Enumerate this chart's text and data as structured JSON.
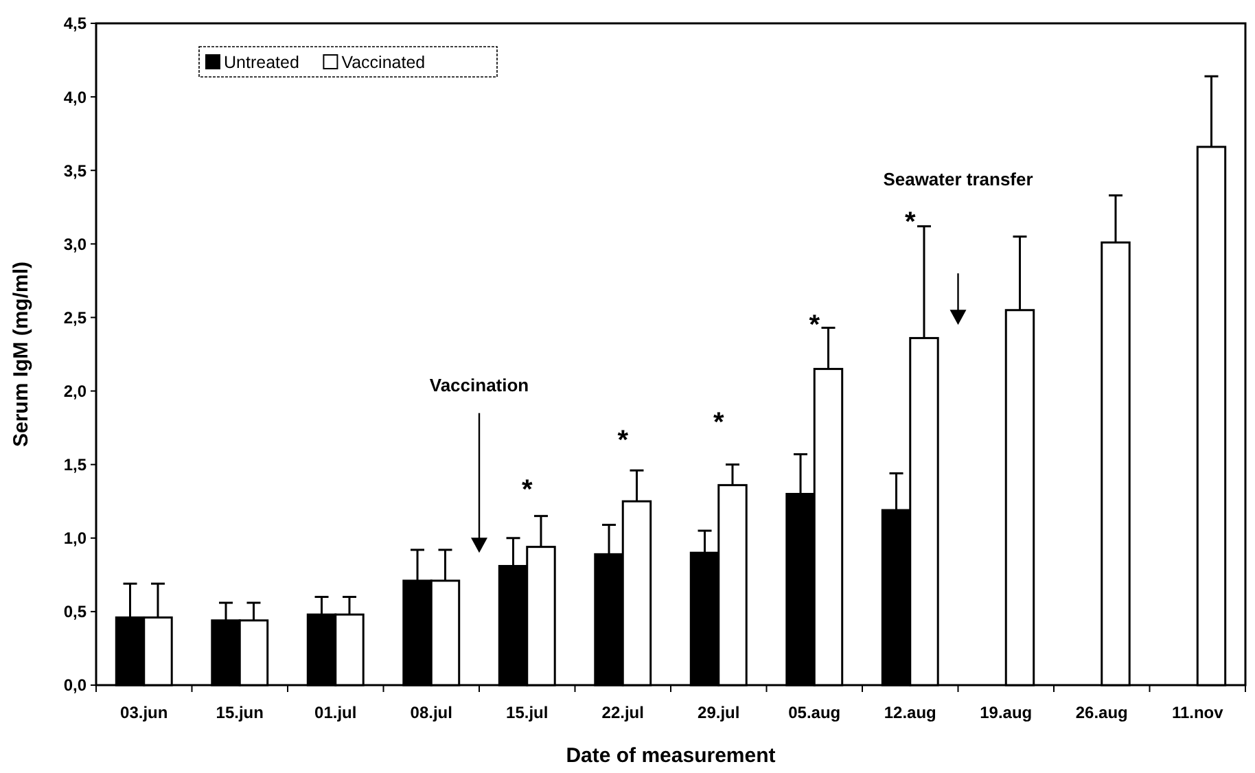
{
  "chart_data": {
    "type": "bar",
    "xlabel": "Date of measurement",
    "ylabel": "Serum IgM (mg/ml)",
    "categories": [
      "03.jun",
      "15.jun",
      "01.jul",
      "08.jul",
      "15.jul",
      "22.jul",
      "29.jul",
      "05.aug",
      "12.aug",
      "19.aug",
      "26.aug",
      "11.nov"
    ],
    "series": [
      {
        "name": "Untreated",
        "color": "#000000",
        "values": [
          0.46,
          0.44,
          0.48,
          0.71,
          0.81,
          0.89,
          0.9,
          1.3,
          1.19,
          null,
          null,
          null
        ],
        "errors": [
          [
            0.46,
            0.69
          ],
          [
            0.44,
            0.56
          ],
          [
            0.48,
            0.6
          ],
          [
            0.71,
            0.92
          ],
          [
            0.81,
            1.0
          ],
          [
            0.89,
            1.09
          ],
          [
            0.9,
            1.05
          ],
          [
            1.3,
            1.57
          ],
          [
            1.19,
            1.44
          ],
          null,
          null,
          null
        ]
      },
      {
        "name": "Vaccinated",
        "color": "#ffffff",
        "values": [
          0.46,
          0.44,
          0.48,
          0.71,
          0.94,
          1.25,
          1.36,
          2.15,
          2.36,
          2.55,
          3.01,
          3.66
        ],
        "errors": [
          [
            0.46,
            0.69
          ],
          [
            0.44,
            0.56
          ],
          [
            0.48,
            0.6
          ],
          [
            0.71,
            0.92
          ],
          [
            0.94,
            1.15
          ],
          [
            1.25,
            1.46
          ],
          [
            1.36,
            1.5
          ],
          [
            2.15,
            2.43
          ],
          [
            2.36,
            3.12
          ],
          [
            2.55,
            3.05
          ],
          [
            3.01,
            3.33
          ],
          [
            3.66,
            4.14
          ]
        ]
      }
    ],
    "ylim": [
      0,
      4.5
    ],
    "yticks": [
      {
        "value": 0,
        "label": "0,0"
      },
      {
        "value": 0.5,
        "label": "0,5"
      },
      {
        "value": 1,
        "label": "1,0"
      },
      {
        "value": 1.5,
        "label": "1,5"
      },
      {
        "value": 2,
        "label": "2,0"
      },
      {
        "value": 2.5,
        "label": "2,5"
      },
      {
        "value": 3,
        "label": "3,0"
      },
      {
        "value": 3.5,
        "label": "3,5"
      },
      {
        "value": 4,
        "label": "4,0"
      },
      {
        "value": 4.5,
        "label": "4,5"
      }
    ],
    "grid": false,
    "legend": "top left",
    "annotations": [
      "Vaccination",
      "Seawater transfer",
      "*",
      "*",
      "*",
      "*",
      "*"
    ]
  }
}
